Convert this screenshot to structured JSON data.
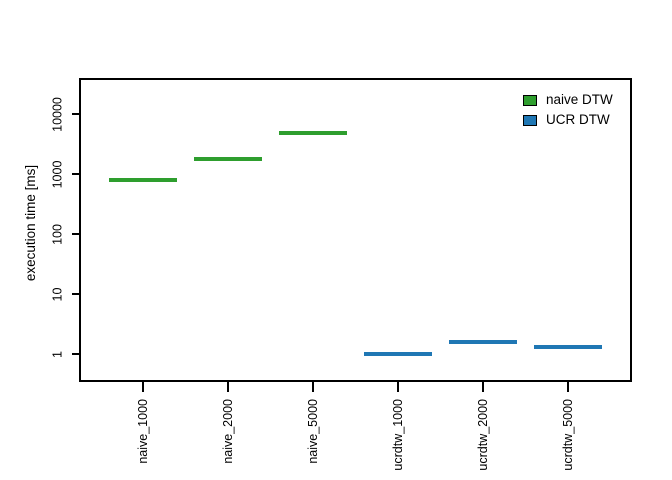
{
  "figure": {
    "background": "#ffffff",
    "text_color": "#000000"
  },
  "chart_data": {
    "type": "scatter",
    "marker": "horizontal-line-segment",
    "title": "",
    "xlabel": "",
    "ylabel": "execution time [ms]",
    "yscale": "log",
    "grid": false,
    "ylim": [
      0.32,
      37000
    ],
    "yticks": [
      "1",
      "10",
      "100",
      "1000",
      "10000"
    ],
    "categories": [
      "naive_1000",
      "naive_2000",
      "naive_5000",
      "ucrdtw_1000",
      "ucrdtw_2000",
      "ucrdtw_5000"
    ],
    "series": [
      {
        "name": "naive DTW",
        "color": "#2e9e2e",
        "values": [
          800,
          1800,
          4900,
          null,
          null,
          null
        ]
      },
      {
        "name": "UCR DTW",
        "color": "#1f77b4",
        "values": [
          null,
          null,
          null,
          1.0,
          1.6,
          1.3
        ]
      }
    ],
    "legend": {
      "position": "top-right",
      "entries": [
        {
          "label": "naive DTW",
          "color": "#2e9e2e"
        },
        {
          "label": "UCR DTW",
          "color": "#1f77b4"
        }
      ]
    }
  }
}
